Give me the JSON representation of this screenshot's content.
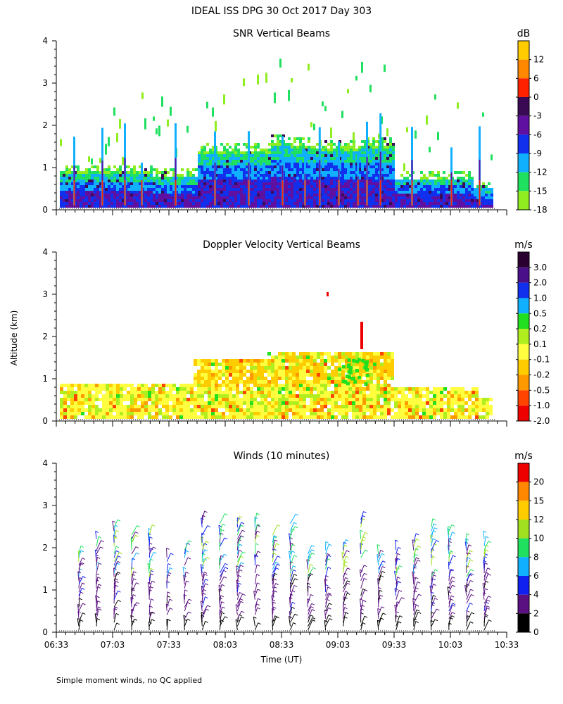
{
  "figure": {
    "title": "IDEAL ISS DPG  30 Oct 2017 Day 303",
    "ylabel": "Altitude (km)",
    "xlabel": "Time (UT)",
    "footnote": "Simple moment winds, no QC applied"
  },
  "chart_data": [
    {
      "type": "heatmap",
      "title": "SNR Vertical Beams",
      "colorbar_unit": "dB",
      "colorbar_labels": [
        "12",
        "6",
        "0",
        "-3",
        "-6",
        "-9",
        "-12",
        "-15",
        "-18"
      ],
      "colorbar_colors": [
        "#ffcc00",
        "#ff8800",
        "#ff2200",
        "#3a0a55",
        "#6010a0",
        "#1030ee",
        "#10b0ff",
        "#20e060",
        "#90ee20"
      ],
      "yticks": [
        "0",
        "1",
        "2",
        "3",
        "4"
      ],
      "ylim": [
        0,
        4
      ],
      "x_hours": [
        6.55,
        10.55
      ]
    },
    {
      "type": "heatmap",
      "title": "Doppler Velocity Vertical Beams",
      "colorbar_unit": "m/s",
      "colorbar_labels": [
        "3.0",
        "2.0",
        "1.0",
        "0.5",
        "0.2",
        "0.1",
        "-0.1",
        "-0.2",
        "-0.5",
        "-1.0",
        "-2.0"
      ],
      "colorbar_colors": [
        "#2a0030",
        "#4a108a",
        "#1030ee",
        "#10b0ff",
        "#20e020",
        "#b0ee20",
        "#ffff40",
        "#ffcc00",
        "#ff9900",
        "#ff4400",
        "#ee0000"
      ],
      "yticks": [
        "0",
        "1",
        "2",
        "3",
        "4"
      ],
      "ylim": [
        0,
        4
      ],
      "x_hours": [
        6.55,
        10.55
      ]
    },
    {
      "type": "scatter",
      "title": "Winds (10 minutes)",
      "colorbar_unit": "m/s",
      "colorbar_labels": [
        "20",
        "15",
        "12",
        "10",
        "8",
        "6",
        "4",
        "2",
        "0"
      ],
      "colorbar_colors": [
        "#ee0000",
        "#ff8800",
        "#ffcc00",
        "#a0e020",
        "#20e060",
        "#10b0ff",
        "#1020ee",
        "#5a1080",
        "#000000"
      ],
      "yticks": [
        "0",
        "1",
        "2",
        "3",
        "4"
      ],
      "ylim": [
        0,
        4
      ],
      "xticks": [
        "06:33",
        "07:03",
        "07:33",
        "08:03",
        "08:33",
        "09:03",
        "09:33",
        "10:03",
        "10:33"
      ],
      "x_hours": [
        6.55,
        10.55
      ]
    }
  ]
}
